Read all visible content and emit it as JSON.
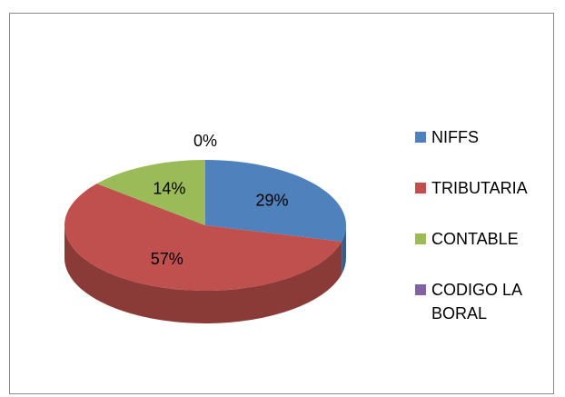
{
  "chart_data": {
    "type": "pie",
    "categories": [
      "NIFFS",
      "TRIBUTARIA",
      "CONTABLE",
      "CODIGO LA BORAL"
    ],
    "values": [
      29,
      57,
      14,
      0
    ],
    "value_labels": [
      "29%",
      "57%",
      "14%",
      "0%"
    ],
    "colors": [
      "#4f81bd",
      "#c0504d",
      "#9bbb59",
      "#8064a2"
    ],
    "legend": "right"
  }
}
